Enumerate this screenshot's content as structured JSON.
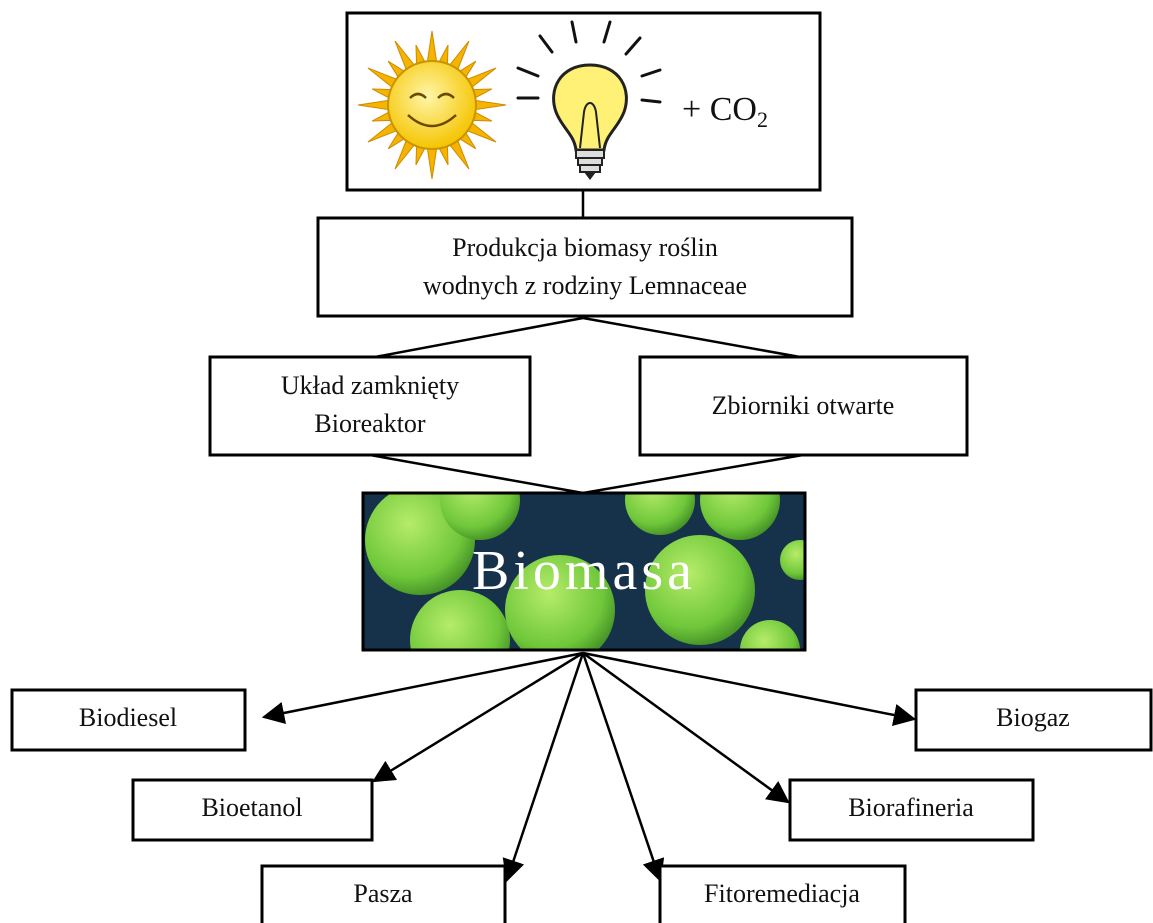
{
  "source": {
    "co2": {
      "text": "+ CO",
      "sub": "2"
    }
  },
  "production": {
    "lines": [
      "Produkcja biomasy roślin",
      "wodnych z rodziny Lemnaceae"
    ]
  },
  "systems": [
    {
      "lines": [
        "Układ zamknięty",
        "Bioreaktor"
      ]
    },
    {
      "lines": [
        "Zbiorniki otwarte"
      ]
    }
  ],
  "biomass": {
    "label": "Biomasa"
  },
  "outputs": [
    "Biodiesel",
    "Biogaz",
    "Bioetanol",
    "Biorafineria",
    "Pasza",
    "Fitoremediacja"
  ]
}
